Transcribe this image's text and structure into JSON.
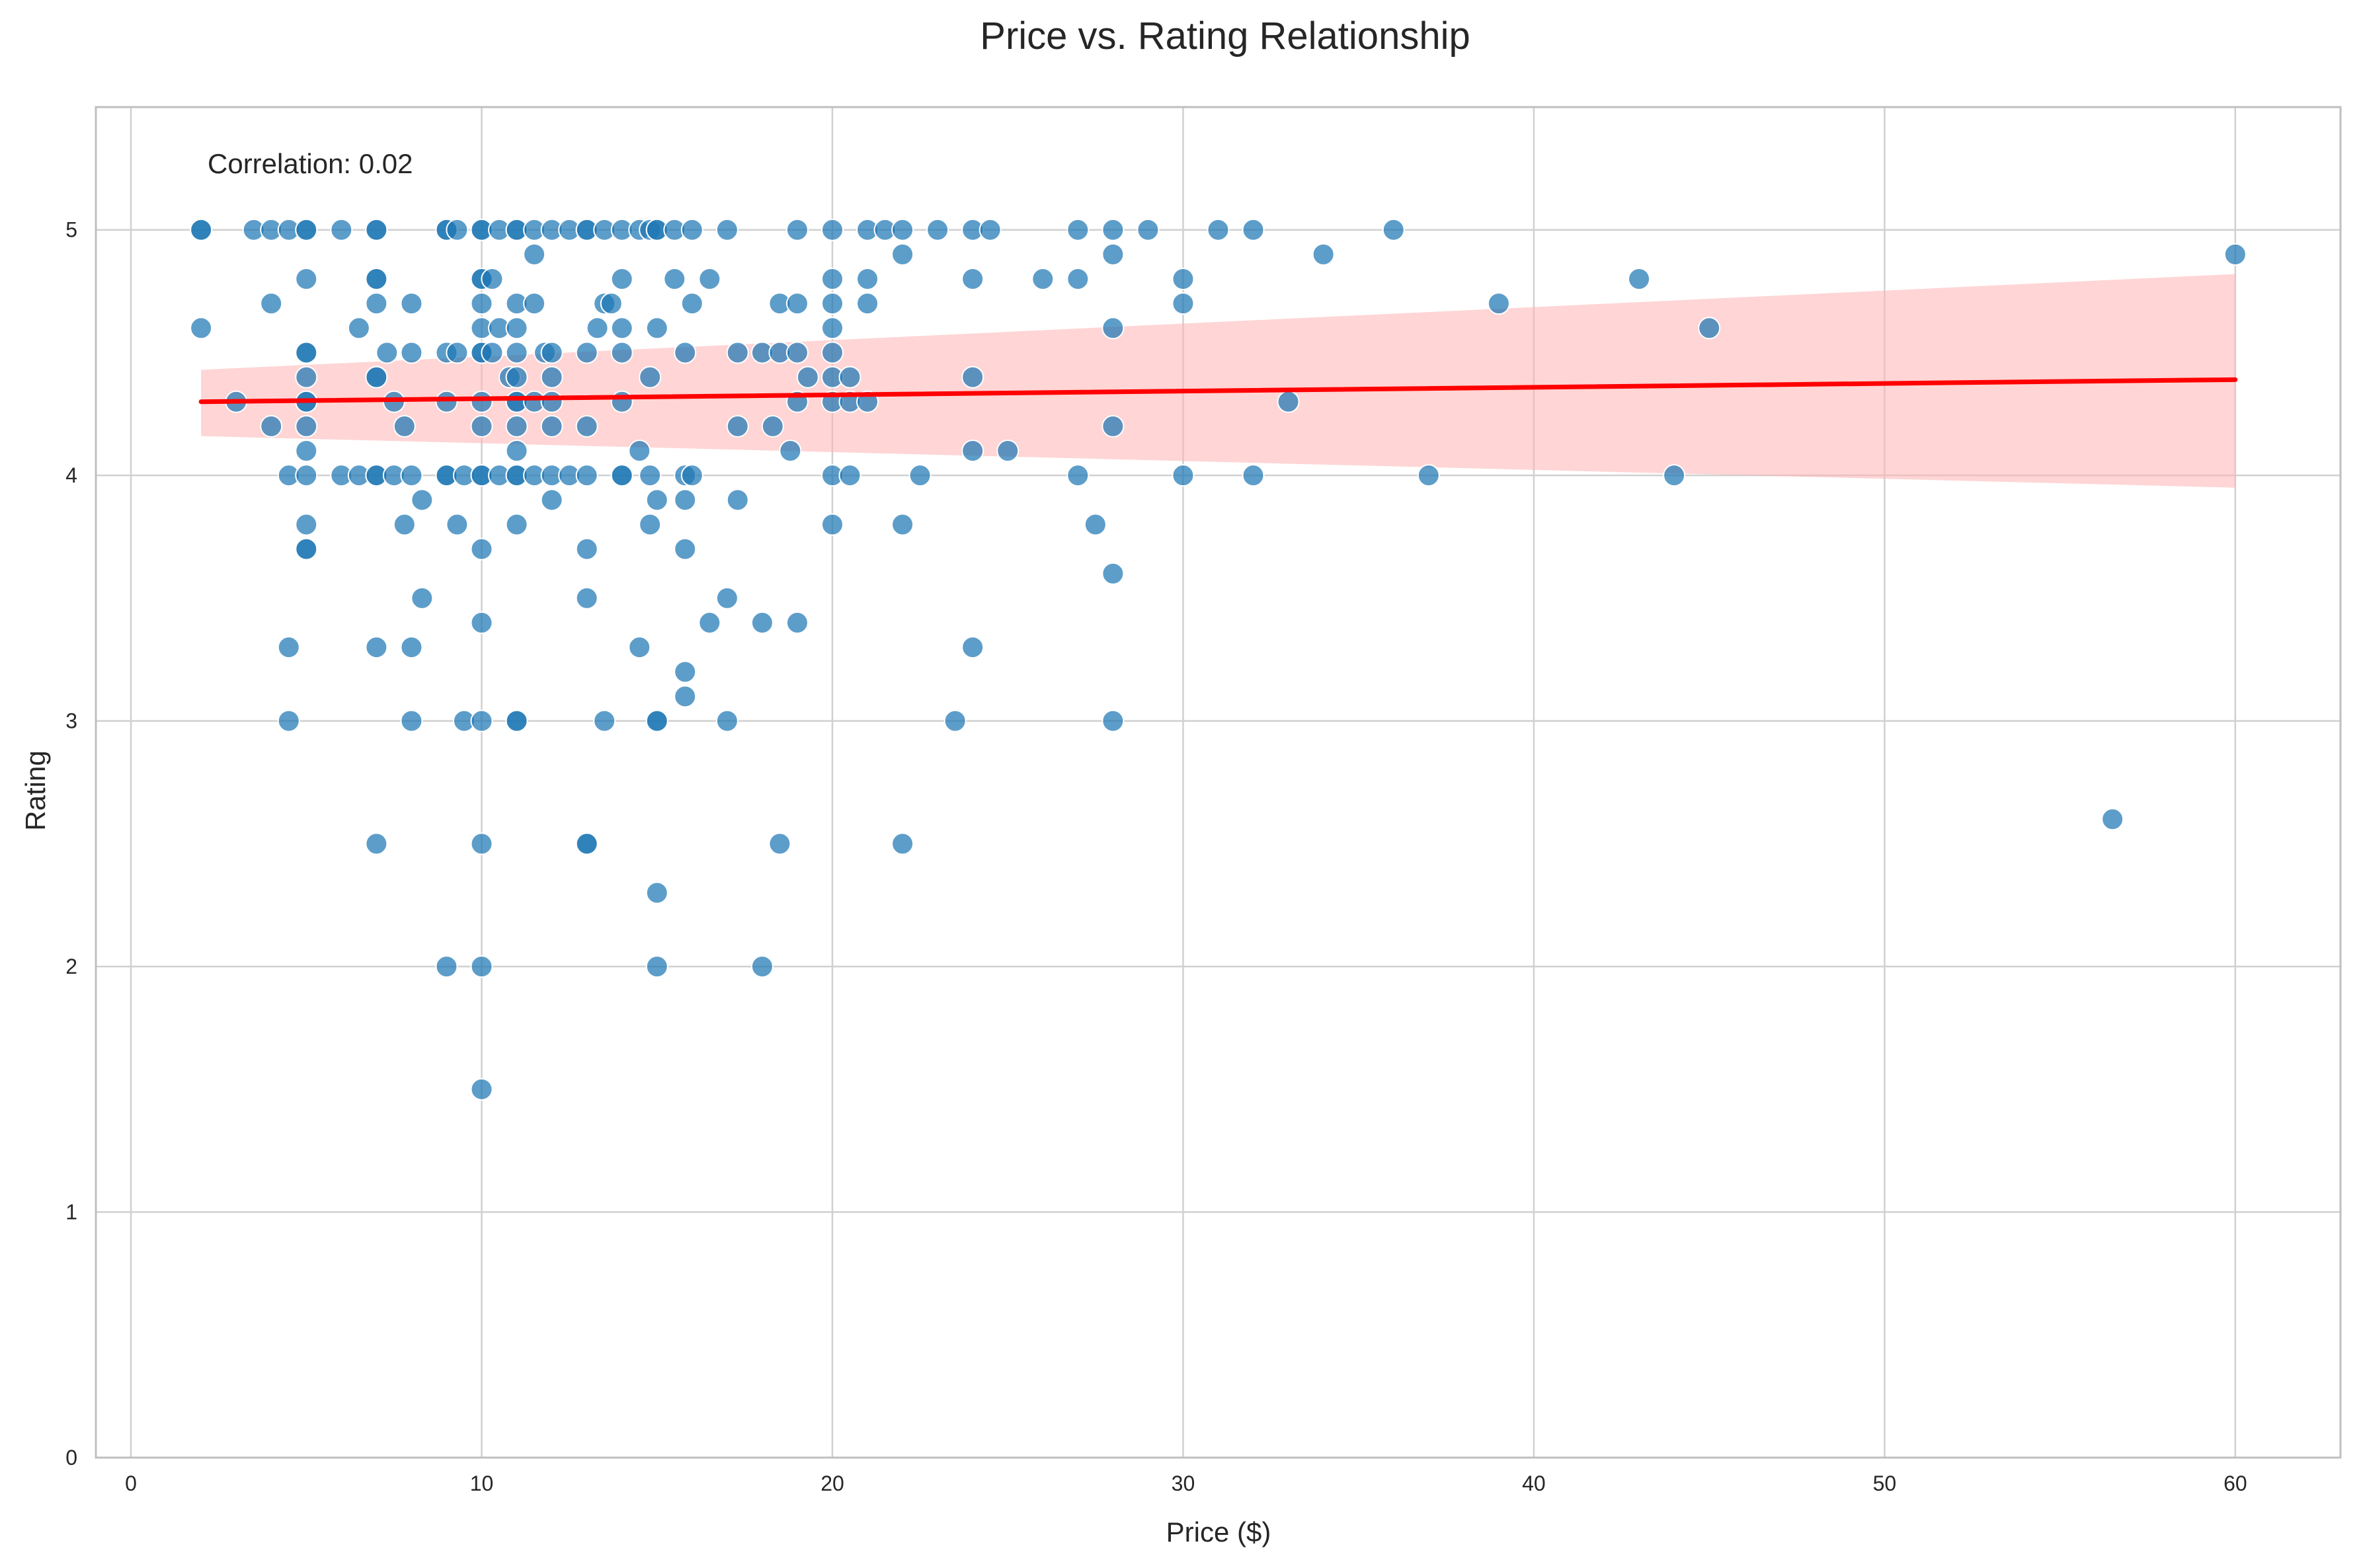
{
  "chart_data": {
    "type": "scatter",
    "title": "Price vs. Rating Relationship",
    "xlabel": "Price ($)",
    "ylabel": "Rating",
    "xlim": [
      -1,
      63
    ],
    "ylim": [
      0,
      5.5
    ],
    "xticks": [
      0,
      10,
      20,
      30,
      40,
      50,
      60
    ],
    "yticks": [
      0,
      1,
      2,
      3,
      4,
      5
    ],
    "grid": true,
    "annotation": "Correlation: 0.02",
    "colors": {
      "points": "#1f77b4",
      "regression_line": "#ff0000",
      "confidence_band": "#ffb3b3",
      "grid": "#d0d0d0",
      "frame": "#bfbfbf"
    },
    "regression": {
      "x": [
        2,
        60
      ],
      "y": [
        4.3,
        4.39
      ],
      "ci_lower": [
        4.16,
        3.95
      ],
      "ci_upper": [
        4.43,
        4.82
      ]
    },
    "points": [
      [
        2,
        5
      ],
      [
        2,
        5
      ],
      [
        2,
        4.6
      ],
      [
        3,
        4.3
      ],
      [
        3.5,
        5
      ],
      [
        4,
        5
      ],
      [
        4,
        4.7
      ],
      [
        4,
        4.2
      ],
      [
        4.5,
        5
      ],
      [
        4.5,
        4
      ],
      [
        4.5,
        3.3
      ],
      [
        4.5,
        3
      ],
      [
        5,
        5
      ],
      [
        5,
        5
      ],
      [
        5,
        4.8
      ],
      [
        5,
        4.5
      ],
      [
        5,
        4.5
      ],
      [
        5,
        4.4
      ],
      [
        5,
        4.3
      ],
      [
        5,
        4.3
      ],
      [
        5,
        4.2
      ],
      [
        5,
        4.1
      ],
      [
        5,
        4
      ],
      [
        5,
        3.8
      ],
      [
        5,
        3.7
      ],
      [
        5,
        3.7
      ],
      [
        6,
        5
      ],
      [
        6,
        4
      ],
      [
        6.5,
        4.6
      ],
      [
        6.5,
        4
      ],
      [
        7,
        5
      ],
      [
        7,
        5
      ],
      [
        7,
        4.8
      ],
      [
        7,
        4.8
      ],
      [
        7,
        4.7
      ],
      [
        7,
        4.4
      ],
      [
        7,
        4.4
      ],
      [
        7,
        4
      ],
      [
        7,
        4
      ],
      [
        7,
        3.3
      ],
      [
        7,
        2.5
      ],
      [
        7.3,
        4.5
      ],
      [
        7.5,
        4.3
      ],
      [
        7.5,
        4
      ],
      [
        7.8,
        4.2
      ],
      [
        7.8,
        3.8
      ],
      [
        8,
        4.7
      ],
      [
        8,
        4.5
      ],
      [
        8,
        4
      ],
      [
        8,
        3.3
      ],
      [
        8,
        3
      ],
      [
        8.3,
        3.9
      ],
      [
        8.3,
        3.5
      ],
      [
        9,
        5
      ],
      [
        9,
        5
      ],
      [
        9,
        4.5
      ],
      [
        9,
        4.3
      ],
      [
        9,
        4
      ],
      [
        9,
        4
      ],
      [
        9,
        2
      ],
      [
        9.3,
        5
      ],
      [
        9.3,
        4.5
      ],
      [
        9.3,
        3.8
      ],
      [
        9.5,
        4
      ],
      [
        9.5,
        3
      ],
      [
        10,
        5
      ],
      [
        10,
        5
      ],
      [
        10,
        4.8
      ],
      [
        10,
        4.8
      ],
      [
        10,
        4.7
      ],
      [
        10,
        4.6
      ],
      [
        10,
        4.5
      ],
      [
        10,
        4.5
      ],
      [
        10,
        4.3
      ],
      [
        10,
        4.2
      ],
      [
        10,
        4
      ],
      [
        10,
        4
      ],
      [
        10,
        3.7
      ],
      [
        10,
        3.4
      ],
      [
        10,
        3
      ],
      [
        10,
        2.5
      ],
      [
        10,
        2
      ],
      [
        10,
        1.5
      ],
      [
        10.3,
        4.8
      ],
      [
        10.3,
        4.5
      ],
      [
        10.5,
        5
      ],
      [
        10.5,
        4.6
      ],
      [
        10.5,
        4
      ],
      [
        10.8,
        4.4
      ],
      [
        11,
        5
      ],
      [
        11,
        5
      ],
      [
        11,
        4.7
      ],
      [
        11,
        4.6
      ],
      [
        11,
        4.5
      ],
      [
        11,
        4.4
      ],
      [
        11,
        4.3
      ],
      [
        11,
        4.3
      ],
      [
        11,
        4.2
      ],
      [
        11,
        4.1
      ],
      [
        11,
        4
      ],
      [
        11,
        4
      ],
      [
        11,
        3.8
      ],
      [
        11,
        3
      ],
      [
        11,
        3
      ],
      [
        11.5,
        5
      ],
      [
        11.5,
        4.9
      ],
      [
        11.5,
        4.7
      ],
      [
        11.5,
        4.3
      ],
      [
        11.5,
        4
      ],
      [
        11.8,
        4.5
      ],
      [
        12,
        5
      ],
      [
        12,
        4.5
      ],
      [
        12,
        4.4
      ],
      [
        12,
        4.3
      ],
      [
        12,
        4.2
      ],
      [
        12,
        4
      ],
      [
        12,
        3.9
      ],
      [
        12.5,
        5
      ],
      [
        12.5,
        4
      ],
      [
        13,
        5
      ],
      [
        13,
        5
      ],
      [
        13,
        4.5
      ],
      [
        13,
        4.2
      ],
      [
        13,
        4
      ],
      [
        13,
        3.7
      ],
      [
        13,
        3.5
      ],
      [
        13,
        2.5
      ],
      [
        13,
        2.5
      ],
      [
        13.3,
        4.6
      ],
      [
        13.5,
        5
      ],
      [
        13.5,
        4.7
      ],
      [
        13.5,
        3
      ],
      [
        13.7,
        4.7
      ],
      [
        14,
        5
      ],
      [
        14,
        4.8
      ],
      [
        14,
        4.6
      ],
      [
        14,
        4.5
      ],
      [
        14,
        4.3
      ],
      [
        14,
        4
      ],
      [
        14,
        4
      ],
      [
        14.5,
        5
      ],
      [
        14.5,
        4.1
      ],
      [
        14.5,
        3.3
      ],
      [
        14.8,
        5
      ],
      [
        14.8,
        4.4
      ],
      [
        14.8,
        4
      ],
      [
        14.8,
        3.8
      ],
      [
        15,
        5
      ],
      [
        15,
        5
      ],
      [
        15,
        4.6
      ],
      [
        15,
        3.9
      ],
      [
        15,
        3
      ],
      [
        15,
        3
      ],
      [
        15,
        2.3
      ],
      [
        15,
        2
      ],
      [
        15.5,
        5
      ],
      [
        15.5,
        4.8
      ],
      [
        15.8,
        4.5
      ],
      [
        15.8,
        4
      ],
      [
        15.8,
        3.9
      ],
      [
        15.8,
        3.7
      ],
      [
        15.8,
        3.2
      ],
      [
        15.8,
        3.1
      ],
      [
        16,
        5
      ],
      [
        16,
        4.7
      ],
      [
        16,
        4
      ],
      [
        16.5,
        4.8
      ],
      [
        16.5,
        3.4
      ],
      [
        17,
        5
      ],
      [
        17,
        3.5
      ],
      [
        17,
        3
      ],
      [
        17.3,
        4.5
      ],
      [
        17.3,
        4.2
      ],
      [
        17.3,
        3.9
      ],
      [
        18,
        4.5
      ],
      [
        18,
        3.4
      ],
      [
        18,
        2
      ],
      [
        18.3,
        4.2
      ],
      [
        18.5,
        4.7
      ],
      [
        18.5,
        4.5
      ],
      [
        18.5,
        2.5
      ],
      [
        18.8,
        4.1
      ],
      [
        19,
        5
      ],
      [
        19,
        4.7
      ],
      [
        19,
        4.5
      ],
      [
        19,
        4.3
      ],
      [
        19,
        3.4
      ],
      [
        19.3,
        4.4
      ],
      [
        20,
        5
      ],
      [
        20,
        4.8
      ],
      [
        20,
        4.7
      ],
      [
        20,
        4.6
      ],
      [
        20,
        4.5
      ],
      [
        20,
        4.4
      ],
      [
        20,
        4.3
      ],
      [
        20,
        4
      ],
      [
        20,
        3.8
      ],
      [
        20.5,
        4.4
      ],
      [
        20.5,
        4.3
      ],
      [
        20.5,
        4
      ],
      [
        21,
        5
      ],
      [
        21,
        4.8
      ],
      [
        21,
        4.7
      ],
      [
        21,
        4.3
      ],
      [
        21.5,
        5
      ],
      [
        22,
        5
      ],
      [
        22,
        4.9
      ],
      [
        22,
        3.8
      ],
      [
        22,
        2.5
      ],
      [
        22.5,
        4
      ],
      [
        23,
        5
      ],
      [
        23.5,
        3
      ],
      [
        24,
        5
      ],
      [
        24,
        4.8
      ],
      [
        24,
        4.4
      ],
      [
        24,
        4.1
      ],
      [
        24,
        3.3
      ],
      [
        24.5,
        5
      ],
      [
        25,
        4.1
      ],
      [
        26,
        4.8
      ],
      [
        27,
        5
      ],
      [
        27,
        4.8
      ],
      [
        27,
        4
      ],
      [
        27.5,
        3.8
      ],
      [
        28,
        5
      ],
      [
        28,
        4.9
      ],
      [
        28,
        4.6
      ],
      [
        28,
        4.2
      ],
      [
        28,
        3.6
      ],
      [
        28,
        3
      ],
      [
        29,
        5
      ],
      [
        30,
        4.8
      ],
      [
        30,
        4.7
      ],
      [
        30,
        4
      ],
      [
        31,
        5
      ],
      [
        32,
        5
      ],
      [
        32,
        4
      ],
      [
        33,
        4.3
      ],
      [
        34,
        4.9
      ],
      [
        36,
        5
      ],
      [
        37,
        4
      ],
      [
        39,
        4.7
      ],
      [
        43,
        4.8
      ],
      [
        44,
        4
      ],
      [
        45,
        4.6
      ],
      [
        56.5,
        2.6
      ],
      [
        60,
        4.9
      ]
    ]
  }
}
